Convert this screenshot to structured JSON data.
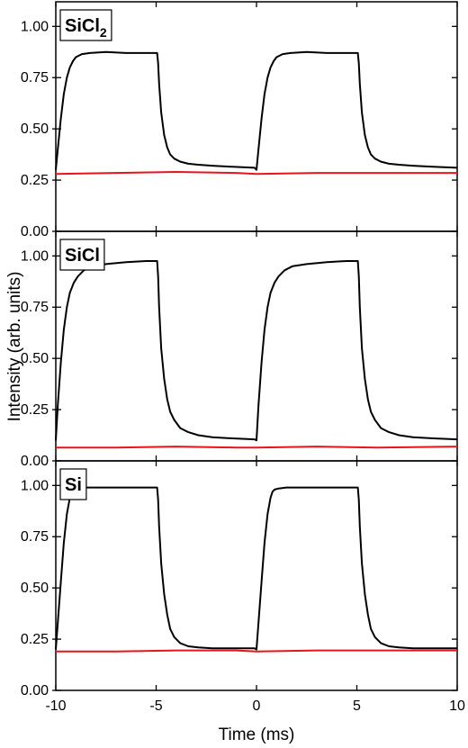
{
  "chart_data": {
    "type": "line",
    "xlabel": "Time (ms)",
    "ylabel": "Intensity (arb. units)",
    "xlim": [
      -10,
      10
    ],
    "ylim": [
      0,
      1.12
    ],
    "x_ticks": [
      -10,
      -5,
      0,
      5,
      10
    ],
    "y_ticks": [
      0.0,
      0.25,
      0.5,
      0.75,
      1.0
    ],
    "x_tick_labels": [
      "-10",
      "-5",
      "0",
      "5",
      "10"
    ],
    "y_tick_labels": [
      "0.00",
      "0.25",
      "0.50",
      "0.75",
      "1.00"
    ],
    "grid": false,
    "colors": {
      "signal": "#000000",
      "background": "#e8141b"
    },
    "panels": [
      {
        "label_main": "SiCl",
        "label_sub": "2",
        "signal": {
          "x": [
            -10,
            -9.9,
            -9.75,
            -9.6,
            -9.45,
            -9.3,
            -9.15,
            -9.0,
            -8.7,
            -8.3,
            -7.5,
            -6.5,
            -5.5,
            -4.95,
            -4.9,
            -4.85,
            -4.75,
            -4.6,
            -4.45,
            -4.3,
            -4.1,
            -3.8,
            -3.4,
            -2.9,
            -2.2,
            -1.2,
            -0.1,
            0.0,
            0.1,
            0.25,
            0.4,
            0.55,
            0.7,
            0.85,
            1.0,
            1.3,
            1.7,
            2.5,
            3.5,
            4.5,
            5.05,
            5.1,
            5.15,
            5.25,
            5.4,
            5.55,
            5.7,
            5.9,
            6.2,
            6.6,
            7.1,
            7.8,
            8.8,
            10.0
          ],
          "y": [
            0.3,
            0.4,
            0.55,
            0.67,
            0.75,
            0.8,
            0.83,
            0.85,
            0.865,
            0.87,
            0.875,
            0.87,
            0.87,
            0.87,
            0.82,
            0.72,
            0.58,
            0.47,
            0.41,
            0.375,
            0.355,
            0.34,
            0.33,
            0.325,
            0.32,
            0.315,
            0.31,
            0.3,
            0.4,
            0.55,
            0.67,
            0.75,
            0.8,
            0.83,
            0.85,
            0.865,
            0.87,
            0.875,
            0.87,
            0.87,
            0.87,
            0.82,
            0.72,
            0.58,
            0.47,
            0.41,
            0.375,
            0.355,
            0.34,
            0.33,
            0.325,
            0.32,
            0.315,
            0.31
          ]
        },
        "background": {
          "x": [
            -10,
            -7,
            -4,
            -1,
            0,
            3,
            6,
            10
          ],
          "y": [
            0.28,
            0.285,
            0.29,
            0.285,
            0.28,
            0.285,
            0.285,
            0.285
          ]
        }
      },
      {
        "label_main": "SiCl",
        "label_sub": "",
        "signal": {
          "x": [
            -10,
            -9.9,
            -9.75,
            -9.6,
            -9.45,
            -9.3,
            -9.1,
            -8.9,
            -8.6,
            -8.2,
            -7.5,
            -6.5,
            -5.5,
            -4.95,
            -4.9,
            -4.85,
            -4.75,
            -4.6,
            -4.45,
            -4.3,
            -4.1,
            -3.8,
            -3.4,
            -2.9,
            -2.2,
            -1.2,
            -0.1,
            0.0,
            0.1,
            0.25,
            0.4,
            0.55,
            0.7,
            0.9,
            1.1,
            1.4,
            1.8,
            2.5,
            3.5,
            4.5,
            5.05,
            5.1,
            5.15,
            5.25,
            5.4,
            5.55,
            5.7,
            5.9,
            6.2,
            6.6,
            7.1,
            7.8,
            8.8,
            10.0
          ],
          "y": [
            0.1,
            0.27,
            0.48,
            0.64,
            0.75,
            0.82,
            0.87,
            0.9,
            0.93,
            0.95,
            0.96,
            0.97,
            0.975,
            0.975,
            0.9,
            0.75,
            0.55,
            0.4,
            0.3,
            0.24,
            0.2,
            0.16,
            0.14,
            0.125,
            0.115,
            0.11,
            0.105,
            0.1,
            0.27,
            0.48,
            0.64,
            0.75,
            0.82,
            0.87,
            0.9,
            0.93,
            0.95,
            0.96,
            0.97,
            0.975,
            0.975,
            0.9,
            0.75,
            0.55,
            0.4,
            0.3,
            0.24,
            0.2,
            0.16,
            0.14,
            0.125,
            0.115,
            0.11,
            0.105
          ]
        },
        "background": {
          "x": [
            -10,
            -7,
            -4,
            -1,
            0,
            3,
            6,
            10
          ],
          "y": [
            0.065,
            0.065,
            0.07,
            0.065,
            0.065,
            0.07,
            0.065,
            0.07
          ]
        }
      },
      {
        "label_main": "Si",
        "label_sub": "",
        "signal": {
          "x": [
            -10,
            -9.9,
            -9.75,
            -9.6,
            -9.45,
            -9.3,
            -9.2,
            -9.1,
            -8.9,
            -8.5,
            -7.5,
            -6,
            -5.0,
            -4.95,
            -4.9,
            -4.85,
            -4.75,
            -4.6,
            -4.45,
            -4.3,
            -4.1,
            -3.8,
            -3.4,
            -2.9,
            -2.2,
            -1.2,
            -0.1,
            0.0,
            0.1,
            0.25,
            0.4,
            0.55,
            0.7,
            0.8,
            0.9,
            1.1,
            1.5,
            2.5,
            4,
            5.0,
            5.05,
            5.1,
            5.15,
            5.25,
            5.4,
            5.55,
            5.7,
            5.9,
            6.2,
            6.6,
            7.1,
            7.8,
            8.8,
            10.0
          ],
          "y": [
            0.2,
            0.33,
            0.53,
            0.72,
            0.86,
            0.94,
            0.97,
            0.98,
            0.985,
            0.99,
            0.99,
            0.99,
            0.99,
            0.99,
            0.93,
            0.8,
            0.62,
            0.47,
            0.37,
            0.3,
            0.26,
            0.23,
            0.215,
            0.21,
            0.205,
            0.205,
            0.205,
            0.2,
            0.33,
            0.53,
            0.72,
            0.86,
            0.94,
            0.97,
            0.98,
            0.985,
            0.99,
            0.99,
            0.99,
            0.99,
            0.99,
            0.93,
            0.8,
            0.62,
            0.47,
            0.37,
            0.3,
            0.26,
            0.23,
            0.215,
            0.21,
            0.205,
            0.205,
            0.205
          ]
        },
        "background": {
          "x": [
            -10,
            -7,
            -4,
            -1,
            0,
            3,
            6,
            10
          ],
          "y": [
            0.19,
            0.19,
            0.195,
            0.195,
            0.19,
            0.195,
            0.195,
            0.195
          ]
        }
      }
    ]
  }
}
